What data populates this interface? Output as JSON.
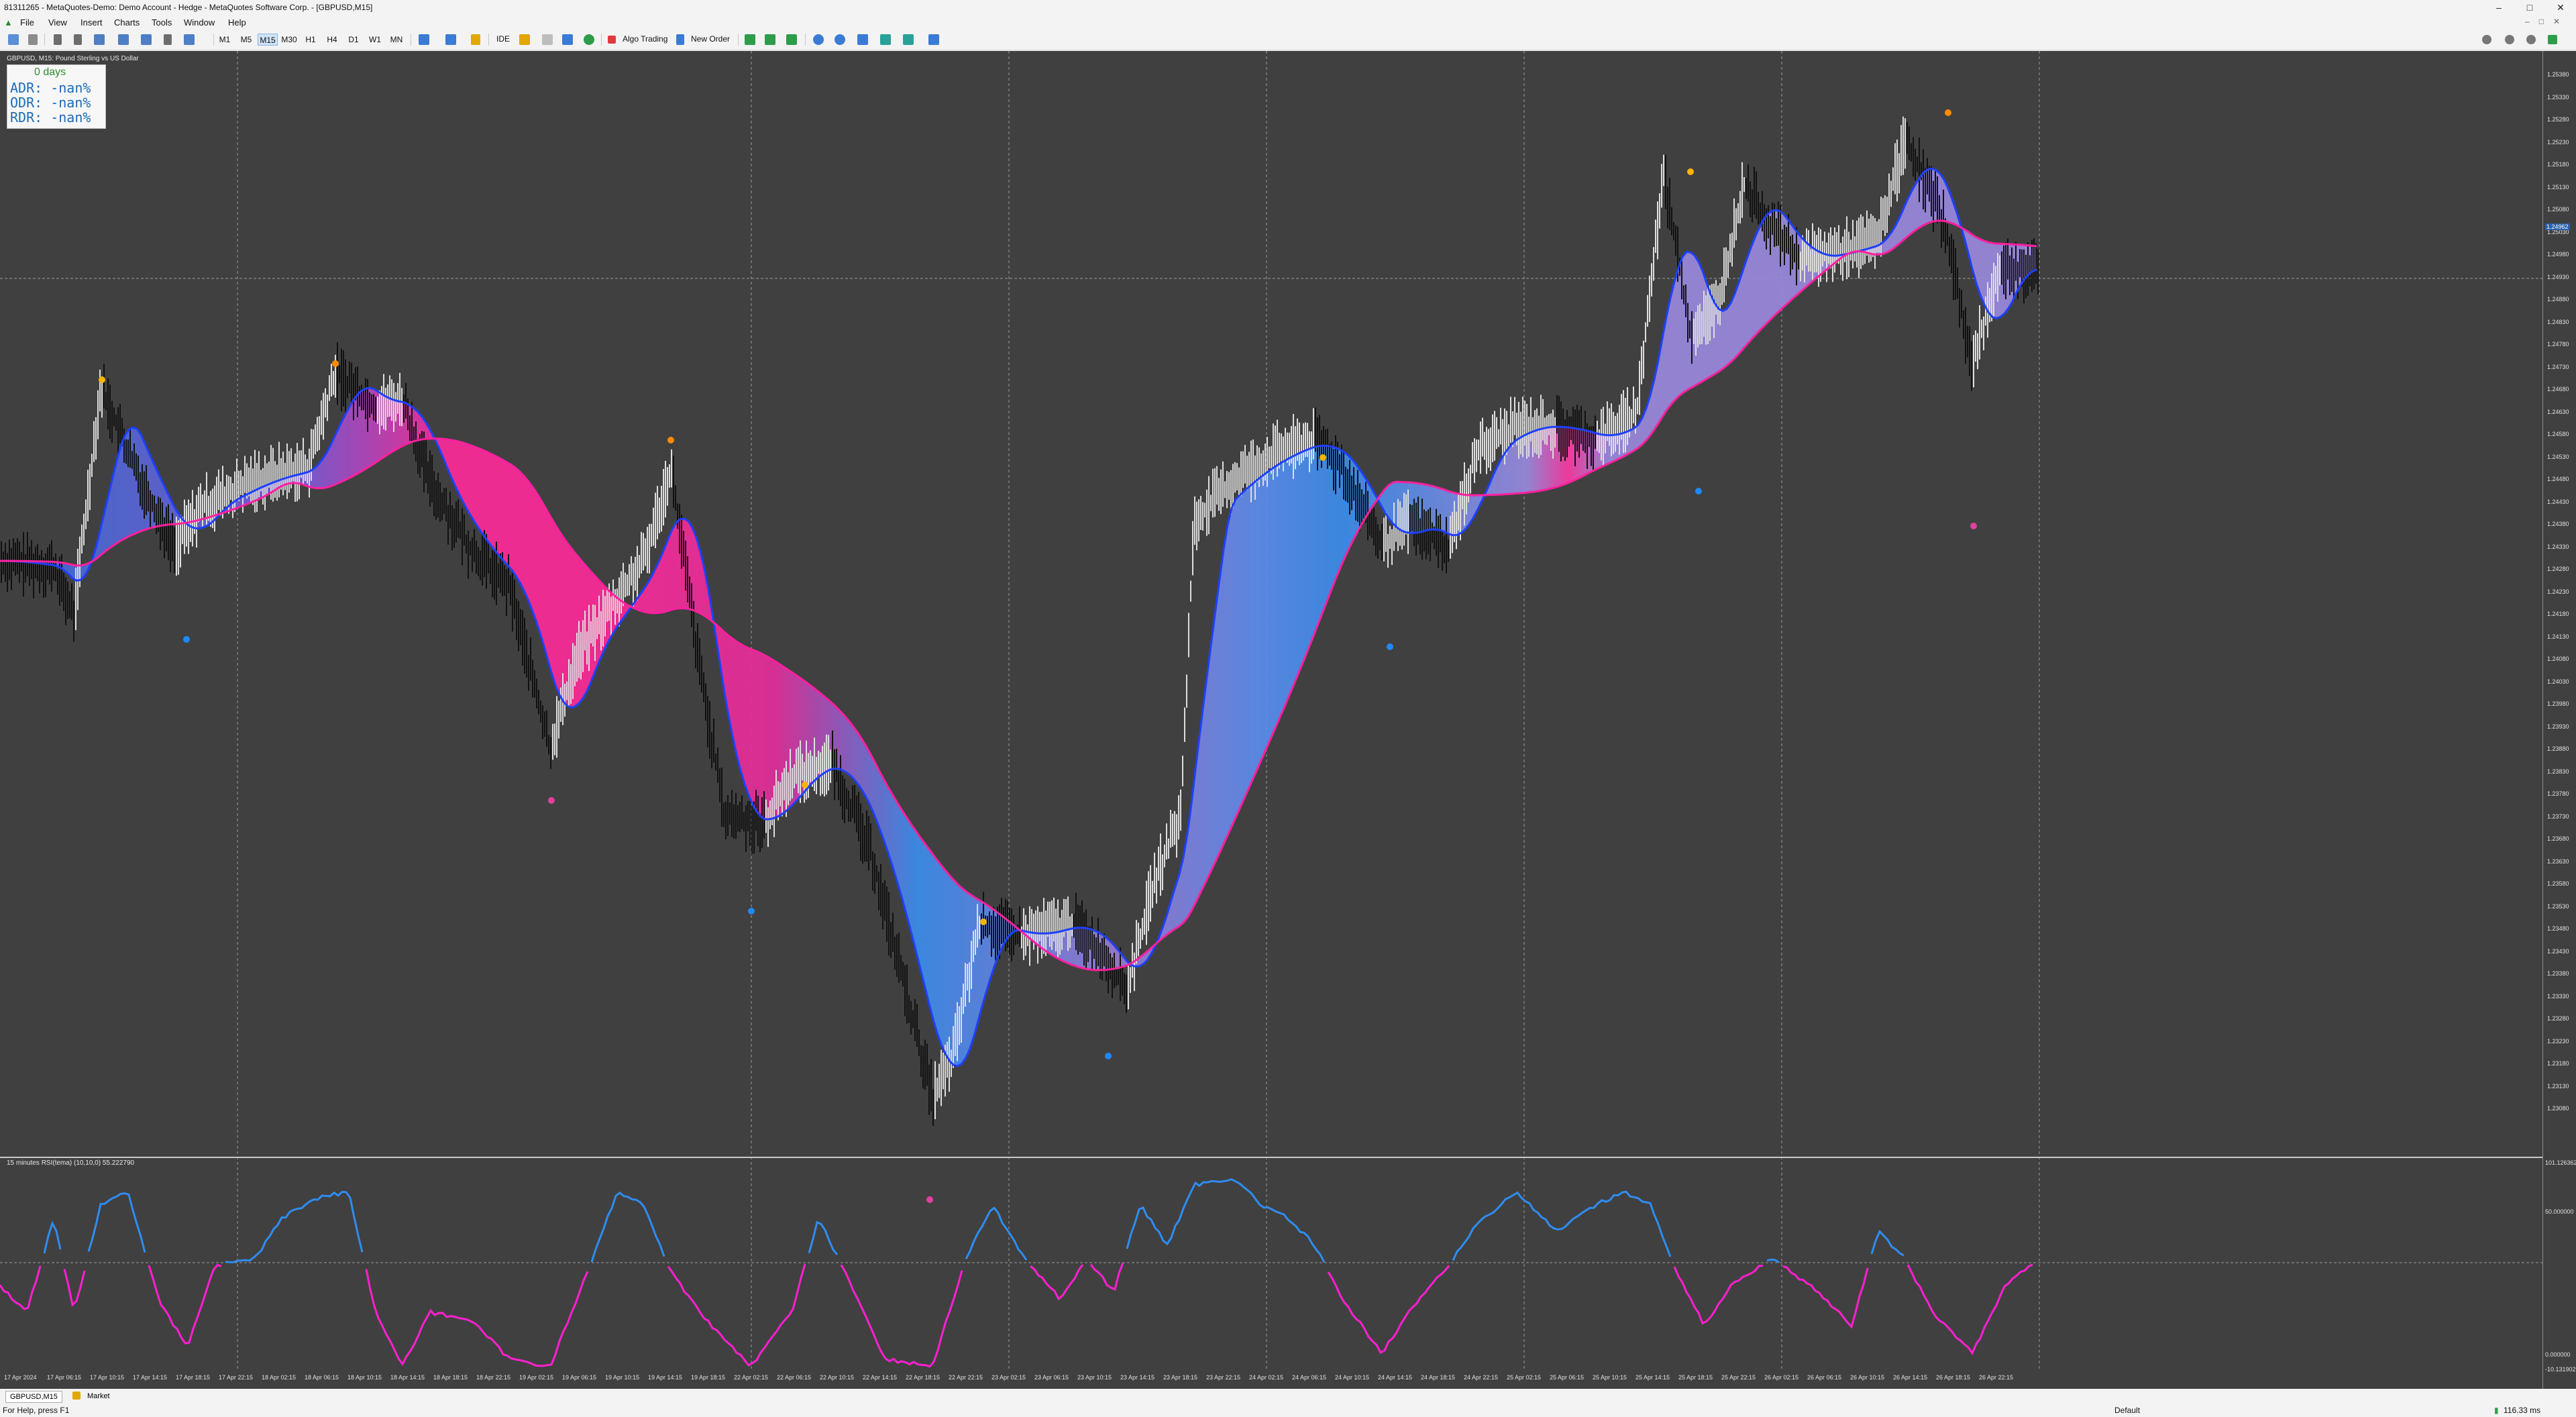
{
  "window": {
    "title": "81311265 - MetaQuotes-Demo: Demo Account - Hedge - MetaQuotes Software Corp. - [GBPUSD,M15]"
  },
  "menu": {
    "items": [
      "File",
      "View",
      "Insert",
      "Charts",
      "Tools",
      "Window",
      "Help"
    ]
  },
  "toolbar": {
    "timeframes": [
      "M1",
      "M5",
      "M15",
      "M30",
      "H1",
      "H4",
      "D1",
      "W1",
      "MN"
    ],
    "active_timeframe": "M15",
    "algo_trading": "Algo Trading",
    "new_order": "New Order",
    "ide": "IDE"
  },
  "chart": {
    "symbol_label": "GBPUSD, M15: Pound Sterling vs US Dollar",
    "info": {
      "days": "0 days",
      "adr": "ADR:  -nan%",
      "odr": "ODR:  -nan%",
      "rdr": "RDR:  -nan%"
    },
    "rsi_label": "15 minutes RSI(tema) (10,10,0) 55.222790",
    "price_ticks": [
      "1.25380",
      "1.25330",
      "1.25280",
      "1.25230",
      "1.25180",
      "1.25130",
      "1.25080",
      "1.25030",
      "1.24980",
      "1.24930",
      "1.24880",
      "1.24830",
      "1.24780",
      "1.24730",
      "1.24680",
      "1.24630",
      "1.24580",
      "1.24530",
      "1.24480",
      "1.24430",
      "1.24380",
      "1.24330",
      "1.24280",
      "1.24230",
      "1.24180",
      "1.24130",
      "1.24080",
      "1.24030",
      "1.23980",
      "1.23930",
      "1.23880",
      "1.23830",
      "1.23780",
      "1.23730",
      "1.23680",
      "1.23630",
      "1.23580",
      "1.23530",
      "1.23480",
      "1.23430",
      "1.23380",
      "1.23330",
      "1.23280",
      "1.23230",
      "1.23180",
      "1.23130",
      "1.23080"
    ],
    "current_price": "1.24962",
    "rsi_ticks": {
      "top": "101.126362",
      "mid": "50.000000",
      "low": "0.000000",
      "bottom": "-10.131902"
    },
    "time_ticks": [
      "17 Apr 2024",
      "17 Apr 06:15",
      "17 Apr 10:15",
      "17 Apr 14:15",
      "17 Apr 18:15",
      "17 Apr 22:15",
      "18 Apr 02:15",
      "18 Apr 06:15",
      "18 Apr 10:15",
      "18 Apr 14:15",
      "18 Apr 18:15",
      "18 Apr 22:15",
      "19 Apr 02:15",
      "19 Apr 06:15",
      "19 Apr 10:15",
      "19 Apr 14:15",
      "19 Apr 18:15",
      "22 Apr 02:15",
      "22 Apr 06:15",
      "22 Apr 10:15",
      "22 Apr 14:15",
      "22 Apr 18:15",
      "22 Apr 22:15",
      "23 Apr 02:15",
      "23 Apr 06:15",
      "23 Apr 10:15",
      "23 Apr 14:15",
      "23 Apr 18:15",
      "23 Apr 22:15",
      "24 Apr 02:15",
      "24 Apr 06:15",
      "24 Apr 10:15",
      "24 Apr 14:15",
      "24 Apr 18:15",
      "24 Apr 22:15",
      "25 Apr 02:15",
      "25 Apr 06:15",
      "25 Apr 10:15",
      "25 Apr 14:15",
      "25 Apr 18:15",
      "25 Apr 22:15",
      "26 Apr 02:15",
      "26 Apr 06:15",
      "26 Apr 10:15",
      "26 Apr 14:15",
      "26 Apr 18:15",
      "26 Apr 22:15"
    ]
  },
  "tabs": {
    "items": [
      "GBPUSD,M15",
      "Market"
    ]
  },
  "status": {
    "help": "For Help, press F1",
    "profile": "Default",
    "ping": "116.33 ms"
  }
}
